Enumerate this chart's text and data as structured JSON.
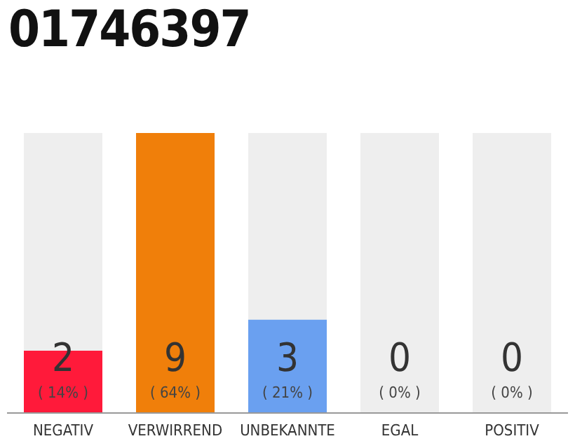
{
  "chart_data": {
    "type": "bar",
    "title": "01746397",
    "categories": [
      "NEGATIV",
      "VERWIRREND",
      "UNBEKANNTE",
      "EGAL",
      "POSITIV"
    ],
    "values": [
      2,
      9,
      3,
      0,
      0
    ],
    "colors": [
      "#ff1a3a",
      "#f07f0a",
      "#6aa0f0",
      "#cccccc",
      "#cccccc"
    ],
    "data_labels": true,
    "annotations": [
      "( 14% )",
      "( 64% )",
      "( 21% )",
      "( 0% )",
      "( 0% )"
    ]
  }
}
